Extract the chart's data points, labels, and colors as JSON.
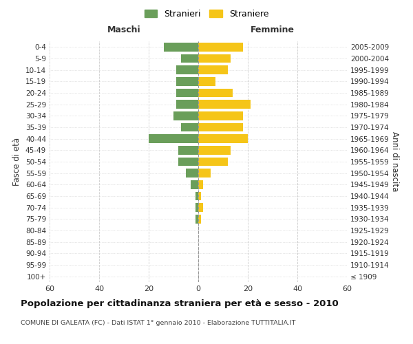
{
  "age_groups": [
    "100+",
    "95-99",
    "90-94",
    "85-89",
    "80-84",
    "75-79",
    "70-74",
    "65-69",
    "60-64",
    "55-59",
    "50-54",
    "45-49",
    "40-44",
    "35-39",
    "30-34",
    "25-29",
    "20-24",
    "15-19",
    "10-14",
    "5-9",
    "0-4"
  ],
  "birth_years": [
    "≤ 1909",
    "1910-1914",
    "1915-1919",
    "1920-1924",
    "1925-1929",
    "1930-1934",
    "1935-1939",
    "1940-1944",
    "1945-1949",
    "1950-1954",
    "1955-1959",
    "1960-1964",
    "1965-1969",
    "1970-1974",
    "1975-1979",
    "1980-1984",
    "1985-1989",
    "1990-1994",
    "1995-1999",
    "2000-2004",
    "2005-2009"
  ],
  "males": [
    0,
    0,
    0,
    0,
    0,
    1,
    1,
    1,
    3,
    5,
    8,
    8,
    20,
    7,
    10,
    9,
    9,
    9,
    9,
    7,
    14
  ],
  "females": [
    0,
    0,
    0,
    0,
    0,
    1,
    2,
    1,
    2,
    5,
    12,
    13,
    20,
    18,
    18,
    21,
    14,
    7,
    12,
    13,
    18
  ],
  "male_color": "#6a9e5a",
  "female_color": "#f5c518",
  "title": "Popolazione per cittadinanza straniera per età e sesso - 2010",
  "subtitle": "COMUNE DI GALEATA (FC) - Dati ISTAT 1° gennaio 2010 - Elaborazione TUTTITALIA.IT",
  "xlabel_left": "Maschi",
  "xlabel_right": "Femmine",
  "ylabel_left": "Fasce di età",
  "ylabel_right": "Anni di nascita",
  "xlim": 60,
  "legend_stranieri": "Stranieri",
  "legend_straniere": "Straniere",
  "background_color": "#ffffff",
  "grid_color": "#cccccc"
}
